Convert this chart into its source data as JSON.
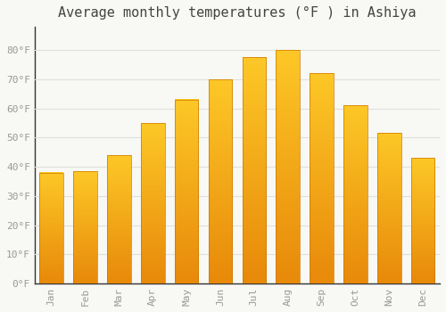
{
  "title": "Average monthly temperatures (°F ) in Ashiya",
  "months": [
    "Jan",
    "Feb",
    "Mar",
    "Apr",
    "May",
    "Jun",
    "Jul",
    "Aug",
    "Sep",
    "Oct",
    "Nov",
    "Dec"
  ],
  "temperatures": [
    38,
    38.5,
    44,
    55,
    63,
    70,
    77.5,
    80,
    72,
    61,
    51.5,
    43
  ],
  "bar_color_top": "#FDB827",
  "bar_color_bottom": "#E8890A",
  "background_color": "#F8F8F4",
  "grid_color": "#E0E0DC",
  "ylim": [
    0,
    88
  ],
  "yticks": [
    0,
    10,
    20,
    30,
    40,
    50,
    60,
    70,
    80
  ],
  "ytick_labels": [
    "0°F",
    "10°F",
    "20°F",
    "30°F",
    "40°F",
    "50°F",
    "60°F",
    "70°F",
    "80°F"
  ],
  "title_fontsize": 11,
  "tick_fontsize": 8,
  "tick_color": "#999999",
  "font_family": "monospace",
  "bar_width": 0.7
}
